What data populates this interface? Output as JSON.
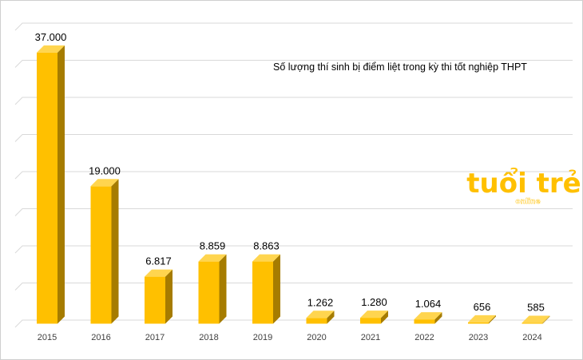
{
  "chart_data": {
    "type": "bar",
    "title": "Số lượng thí sinh bị điểm liệt trong kỳ thi tốt nghiệp THPT",
    "categories": [
      "2015",
      "2016",
      "2017",
      "2018",
      "2019",
      "2020",
      "2021",
      "2022",
      "2023",
      "2024"
    ],
    "values": [
      37000,
      19000,
      6817,
      8859,
      8863,
      1262,
      1280,
      1064,
      656,
      585
    ],
    "value_labels": [
      "37.000",
      "19.000",
      "6.817",
      "8.859",
      "8.863",
      "1.262",
      "1.280",
      "1.064",
      "656",
      "585"
    ],
    "ylim": [
      0,
      40000
    ],
    "grid": true,
    "bar_style": "3d",
    "colors": {
      "bar_front": "#ffc000",
      "bar_side": "#a67c00",
      "bar_top": "#ffd54f",
      "grid": "#d9d9d9"
    }
  },
  "watermark": {
    "brand": "tuổi trẻ",
    "sub": "online",
    "color": "#ffc000"
  }
}
